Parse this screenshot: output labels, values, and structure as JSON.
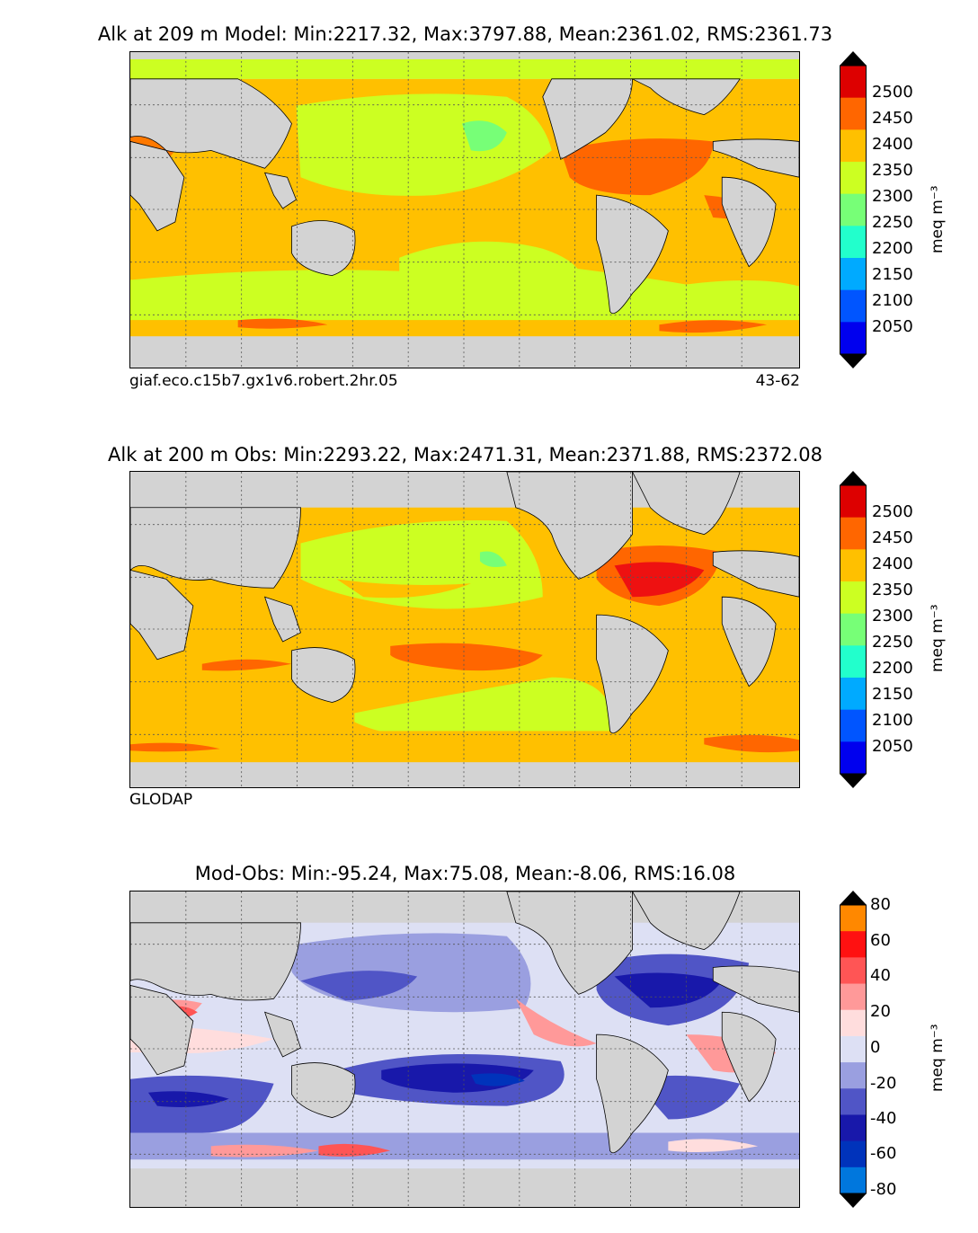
{
  "panels": [
    {
      "title": "Alk at 209 m Model: Min:2217.32, Max:3797.88, Mean:2361.02, RMS:2361.73",
      "caption_left": "giaf.eco.c15b7.gx1v6.robert.2hr.05",
      "caption_right": "43-62"
    },
    {
      "title": "Alk at 200 m Obs: Min:2293.22, Max:2471.31, Mean:2371.88, RMS:2372.08",
      "caption_left": "GLODAP",
      "caption_right": ""
    },
    {
      "title": "Mod-Obs: Min:-95.24, Max:75.08, Mean:-8.06, RMS:16.08",
      "caption_left": "",
      "caption_right": ""
    }
  ],
  "colorbars": [
    {
      "units": "meq m⁻³",
      "ticks": [
        "2500",
        "2450",
        "2400",
        "2350",
        "2300",
        "2250",
        "2200",
        "2150",
        "2100",
        "2050"
      ],
      "colors": [
        "#800000",
        "#dd0000",
        "#ff6600",
        "#ffc000",
        "#ccff22",
        "#77ff77",
        "#22ffcc",
        "#00aaff",
        "#0055ff",
        "#0000ee",
        "#000080"
      ]
    },
    {
      "units": "meq m⁻³",
      "ticks": [
        "2500",
        "2450",
        "2400",
        "2350",
        "2300",
        "2250",
        "2200",
        "2150",
        "2100",
        "2050"
      ],
      "colors": [
        "#800000",
        "#dd0000",
        "#ff6600",
        "#ffc000",
        "#ccff22",
        "#77ff77",
        "#22ffcc",
        "#00aaff",
        "#0055ff",
        "#0000ee",
        "#000080"
      ]
    },
    {
      "units": "meq m⁻³",
      "ticks": [
        "80",
        "60",
        "40",
        "20",
        "0",
        "-20",
        "-40",
        "-60",
        "-80"
      ],
      "colors": [
        "#ffff22",
        "#ff8800",
        "#ff1111",
        "#ff5555",
        "#ff9999",
        "#ffdddd",
        "#dde0f4",
        "#9a9fe0",
        "#5055c6",
        "#1818aa",
        "#0033bb",
        "#0077dd",
        "#00ccff"
      ]
    }
  ],
  "colors": {
    "land": "#d3d3d3",
    "coast": "#000000",
    "grid": "#555555"
  }
}
